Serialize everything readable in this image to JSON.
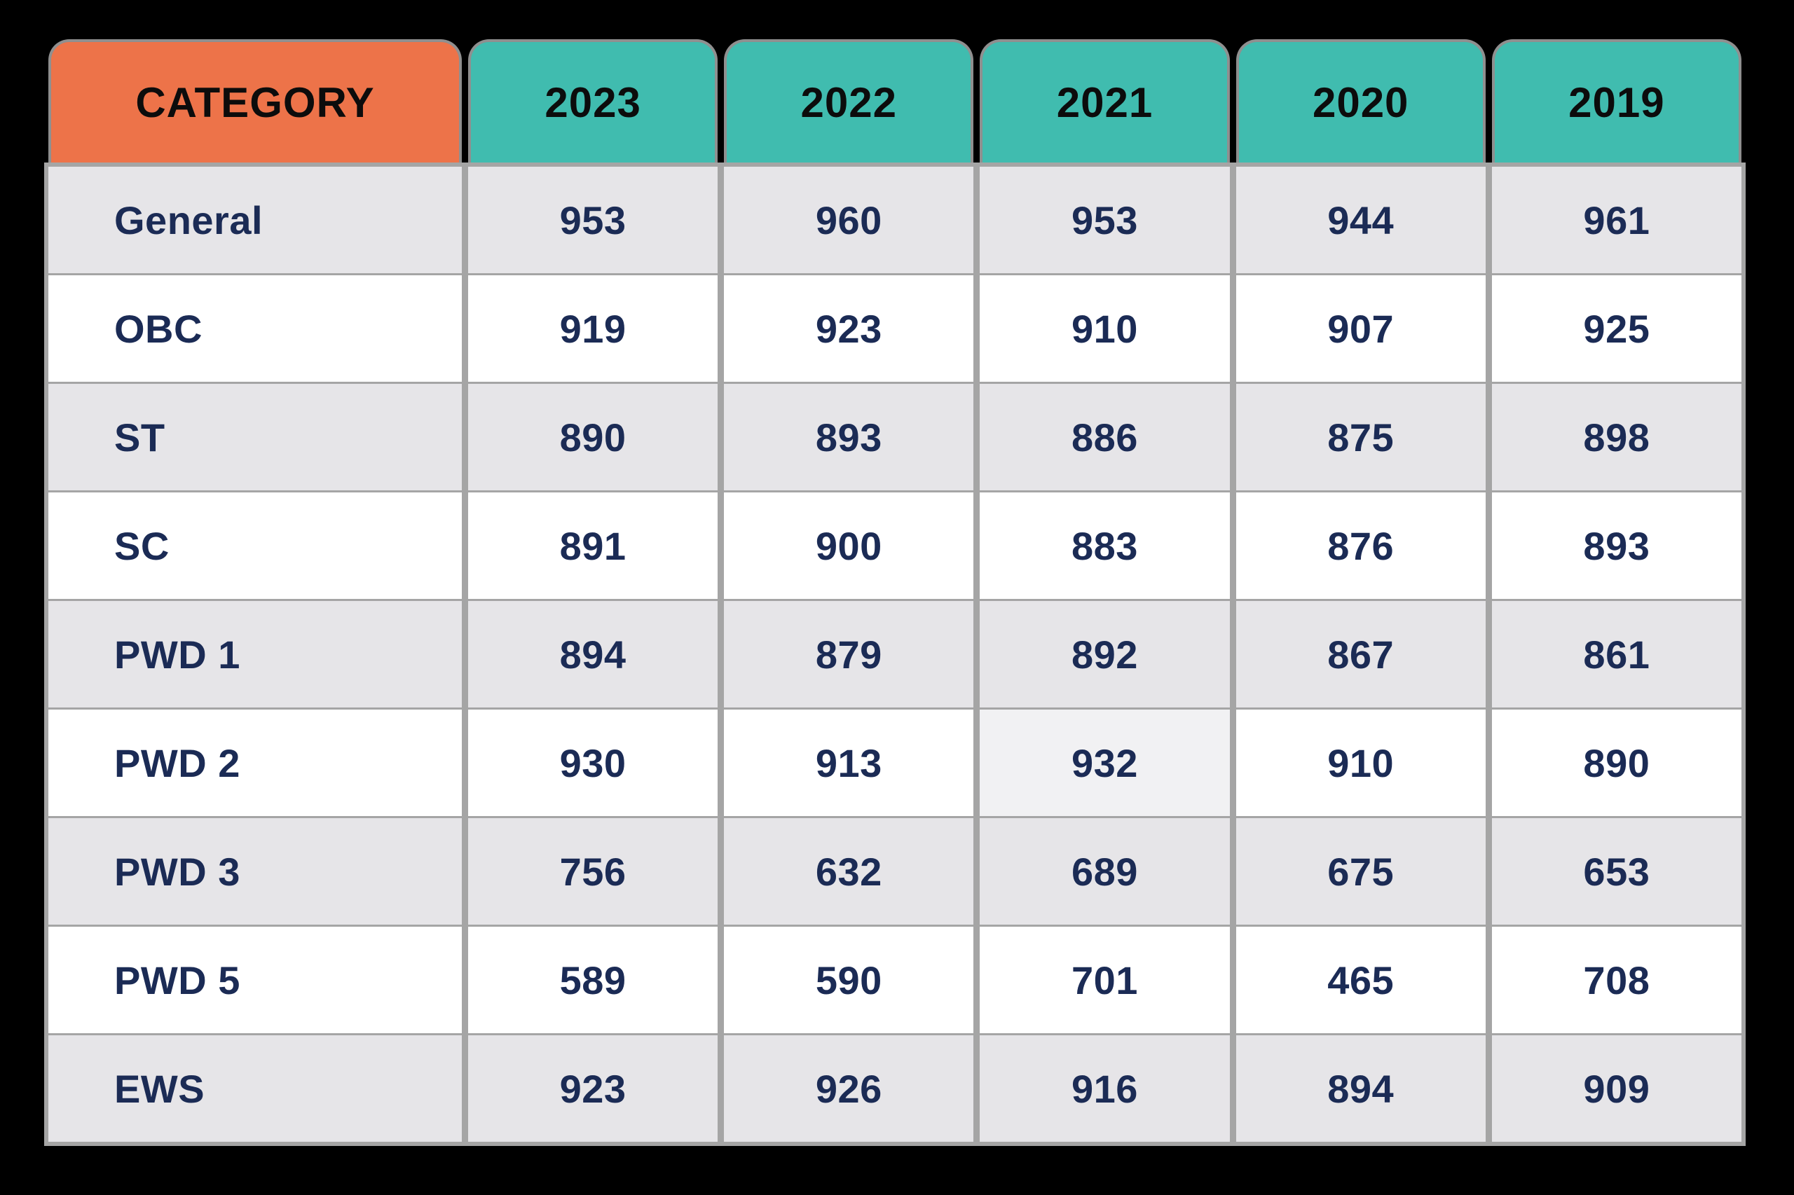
{
  "header": {
    "category_label": "CATEGORY",
    "years": [
      "2023",
      "2022",
      "2021",
      "2020",
      "2019"
    ]
  },
  "rows": [
    {
      "category": "General",
      "values": [
        "953",
        "960",
        "953",
        "944",
        "961"
      ]
    },
    {
      "category": "OBC",
      "values": [
        "919",
        "923",
        "910",
        "907",
        "925"
      ]
    },
    {
      "category": "ST",
      "values": [
        "890",
        "893",
        "886",
        "875",
        "898"
      ]
    },
    {
      "category": "SC",
      "values": [
        "891",
        "900",
        "883",
        "876",
        "893"
      ]
    },
    {
      "category": "PWD 1",
      "values": [
        "894",
        "879",
        "892",
        "867",
        "861"
      ]
    },
    {
      "category": "PWD 2",
      "values": [
        "930",
        "913",
        "932",
        "910",
        "890"
      ]
    },
    {
      "category": "PWD 3",
      "values": [
        "756",
        "632",
        "689",
        "675",
        "653"
      ]
    },
    {
      "category": "PWD 5",
      "values": [
        "589",
        "590",
        "701",
        "465",
        "708"
      ]
    },
    {
      "category": "EWS",
      "values": [
        "923",
        "926",
        "916",
        "894",
        "909"
      ]
    }
  ],
  "highlight_cell": {
    "row_index": 5,
    "value_index": 2
  },
  "colors": {
    "background": "#000000",
    "category_tab": "#ED7349",
    "year_tab": "#40BCAF",
    "header_text": "#0C0C0C",
    "body_text": "#1B2B55",
    "row_stripe": "#E6E5E8",
    "row_white": "#FFFFFF",
    "highlight_cell_bg": "#F1F1F3",
    "divider": "#A5A5A5",
    "tab_outline": "#8F8F8F"
  },
  "chart_data": {
    "type": "table",
    "columns": [
      "CATEGORY",
      "2023",
      "2022",
      "2021",
      "2020",
      "2019"
    ],
    "rows": [
      [
        "General",
        953,
        960,
        953,
        944,
        961
      ],
      [
        "OBC",
        919,
        923,
        910,
        907,
        925
      ],
      [
        "ST",
        890,
        893,
        886,
        875,
        898
      ],
      [
        "SC",
        891,
        900,
        883,
        876,
        893
      ],
      [
        "PWD 1",
        894,
        879,
        892,
        867,
        861
      ],
      [
        "PWD 2",
        930,
        913,
        932,
        910,
        890
      ],
      [
        "PWD 3",
        756,
        632,
        689,
        675,
        653
      ],
      [
        "PWD 5",
        589,
        590,
        701,
        465,
        708
      ],
      [
        "EWS",
        923,
        926,
        916,
        894,
        909
      ]
    ],
    "title": "",
    "legend_position": "none",
    "grid": true
  }
}
